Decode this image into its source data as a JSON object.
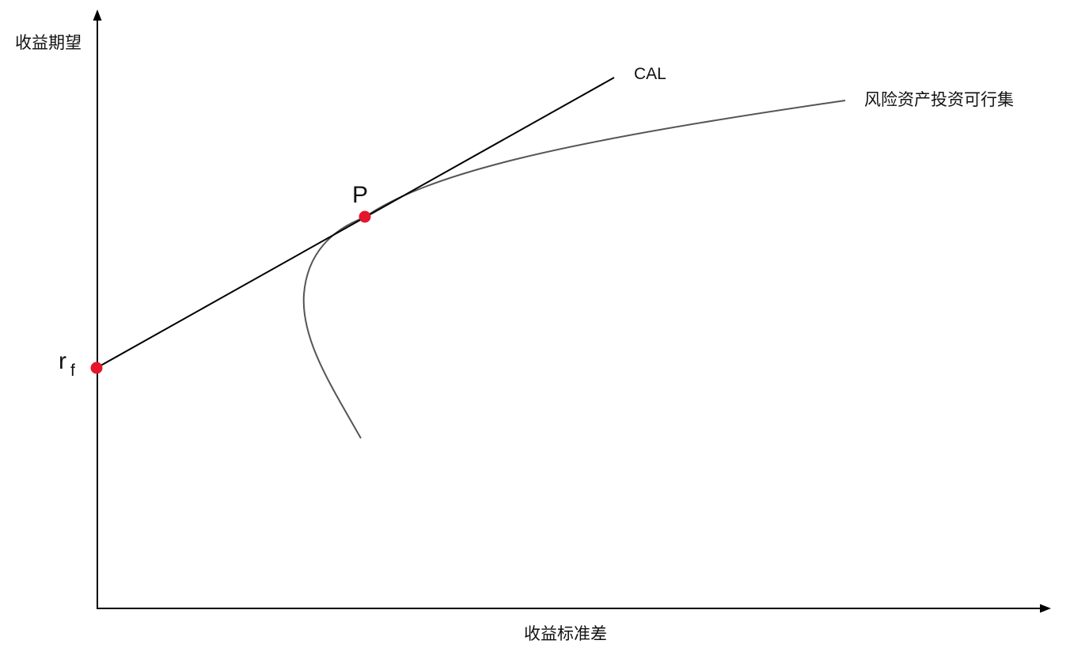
{
  "axes": {
    "y_label": "收益期望",
    "x_label": "收益标准差"
  },
  "curves": {
    "cal_label": "CAL",
    "frontier_label": "风险资产投资可行集"
  },
  "points": {
    "tangency_label": "P",
    "riskfree_main": "r",
    "riskfree_sub": "f"
  },
  "colors": {
    "axis": "#000000",
    "cal_line": "#000000",
    "frontier": "#555555",
    "point": "#e3162b"
  }
}
